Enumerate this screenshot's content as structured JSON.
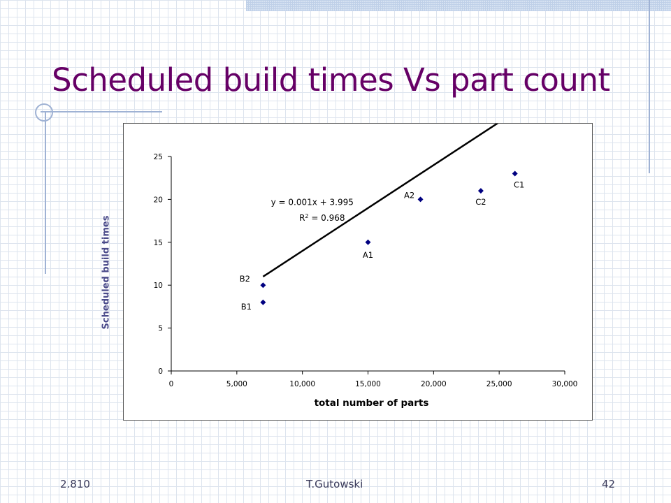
{
  "slide": {
    "title": "Scheduled build times Vs part count",
    "footer_left": "2.810",
    "footer_center": "T.Gutowski",
    "footer_right": "42"
  },
  "colors": {
    "title": "#660066",
    "marker": "#000080",
    "trendline": "#000000",
    "grid_decoration": "#9fb2d4"
  },
  "chart_data": {
    "type": "scatter",
    "title": "",
    "xlabel": "total number of parts",
    "ylabel": "Scheduled build times",
    "xlim": [
      0,
      30000
    ],
    "ylim": [
      0,
      25
    ],
    "xticks": [
      0,
      5000,
      10000,
      15000,
      20000,
      25000,
      30000
    ],
    "xtick_labels": [
      "0",
      "5,000",
      "10,000",
      "15,000",
      "20,000",
      "25,000",
      "30,000"
    ],
    "yticks": [
      0,
      5,
      10,
      15,
      20,
      25
    ],
    "ytick_labels": [
      "0",
      "5",
      "10",
      "15",
      "20",
      "25"
    ],
    "grid": false,
    "points": [
      {
        "label": "B1",
        "x": 7000,
        "y": 8
      },
      {
        "label": "B2",
        "x": 7000,
        "y": 10
      },
      {
        "label": "A1",
        "x": 15000,
        "y": 15
      },
      {
        "label": "A2",
        "x": 19000,
        "y": 20
      },
      {
        "label": "C2",
        "x": 23600,
        "y": 21
      },
      {
        "label": "C1",
        "x": 26200,
        "y": 23
      }
    ],
    "trendline": {
      "type": "linear",
      "slope": 0.001,
      "intercept": 3.995,
      "x_range": [
        7000,
        26200
      ],
      "equation_text": "y = 0.001x + 3.995",
      "r2_prefix": "R",
      "r2_sup": "2",
      "r2_value_text": " = 0.968"
    }
  }
}
